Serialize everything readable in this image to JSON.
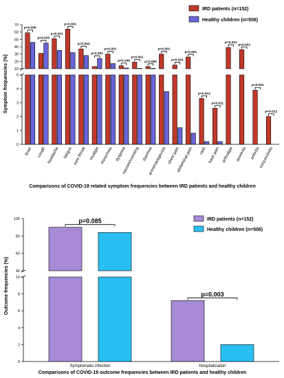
{
  "colors": {
    "ird1": "#C0392B",
    "healthy1": "#6A64D8",
    "ird2": "#A78BD6",
    "healthy2": "#2ABFF2",
    "stroke": "#000000"
  },
  "chart_data": [
    {
      "type": "bar",
      "title": "",
      "caption": "Comparisons of COVID-19 related symptom frequencies between IRD patients and healthy children",
      "ylabel": "Symptom frequencies (%)",
      "xlabel": "",
      "y_axis_break": true,
      "ylim_upper": [
        10,
        70
      ],
      "ylim_lower": [
        0,
        5
      ],
      "yticks_upper": [
        10,
        20,
        30,
        40,
        50,
        60,
        70
      ],
      "yticks_lower": [
        0,
        1,
        2,
        3,
        4,
        5
      ],
      "categories": [
        "fever",
        "cough",
        "headache",
        "fatigue",
        "sore throat",
        "myalgia",
        "rhinorrhea",
        "dyspnea",
        "nausea/vomiting",
        "diarrhea",
        "anosmia/ageusia",
        "chest pain",
        "abdominal pain",
        "rash",
        "back pain",
        "arthralgia",
        "anorexia",
        "arthritis",
        "conjunctivitis"
      ],
      "series": [
        {
          "name": "IRD patients (n=152)",
          "color_key": "ird1",
          "values": [
            59,
            31,
            51,
            64,
            37,
            13,
            30,
            14,
            19,
            13,
            30,
            15,
            26,
            3.3,
            2.6,
            39,
            36,
            3.9,
            2.0
          ]
        },
        {
          "name": "Healthy children (n=506)",
          "color_key": "healthy1",
          "values": [
            46,
            45,
            35,
            32,
            28,
            24,
            17,
            11,
            10.5,
            10.5,
            3.8,
            1.2,
            0.8,
            0.2,
            0.2,
            0,
            0,
            0,
            0
          ]
        }
      ],
      "annotations": [
        {
          "category_index": 0,
          "text": "p=0.006"
        },
        {
          "category_index": 1,
          "text": "p=0.003"
        },
        {
          "category_index": 2,
          "text": "p<0.001"
        },
        {
          "category_index": 3,
          "text": "p<0.001"
        },
        {
          "category_index": 4,
          "text": "p=0.043"
        },
        {
          "category_index": 5,
          "text": "p<0.001"
        },
        {
          "category_index": 6,
          "text": "p<0.001"
        },
        {
          "category_index": 7,
          "text": "p=0.246"
        },
        {
          "category_index": 8,
          "text": "p<0.001"
        },
        {
          "category_index": 9,
          "text": "p=0.080"
        },
        {
          "category_index": 10,
          "text": "p<0.001"
        },
        {
          "category_index": 11,
          "text": "p<0.001"
        },
        {
          "category_index": 12,
          "text": "p<0.001"
        },
        {
          "category_index": 13,
          "text": "p=0.003"
        },
        {
          "category_index": 14,
          "text": "p=0.011"
        },
        {
          "category_index": 15,
          "text": "p<0.001"
        },
        {
          "category_index": 16,
          "text": "p<0.001"
        },
        {
          "category_index": 17,
          "text": "p<0.001"
        },
        {
          "category_index": 18,
          "text": "p=0.012"
        }
      ],
      "legend_position": "top-right"
    },
    {
      "type": "bar",
      "title": "",
      "caption": "Comparisons of COVID-19 outcome frequencies between IRD patients and healthy children",
      "ylabel": "Outcome frequencies (%)",
      "xlabel": "",
      "y_axis_break": true,
      "ylim_upper": [
        40,
        100
      ],
      "ylim_lower": [
        0,
        10
      ],
      "yticks_upper": [
        40,
        60,
        80,
        100
      ],
      "yticks_lower": [
        0,
        2,
        4,
        6,
        8,
        10
      ],
      "categories": [
        "Symptomatic infection",
        "Hospitalization"
      ],
      "series": [
        {
          "name": "IRD patients (n=152)",
          "color_key": "ird2",
          "values": [
            90,
            7.2
          ]
        },
        {
          "name": "Healthy children (n=506)",
          "color_key": "healthy2",
          "values": [
            84,
            2.0
          ]
        }
      ],
      "annotations": [
        {
          "category_index": 0,
          "text": "p=0.085"
        },
        {
          "category_index": 1,
          "text": "p=0.003"
        }
      ],
      "legend_position": "top-right"
    }
  ]
}
